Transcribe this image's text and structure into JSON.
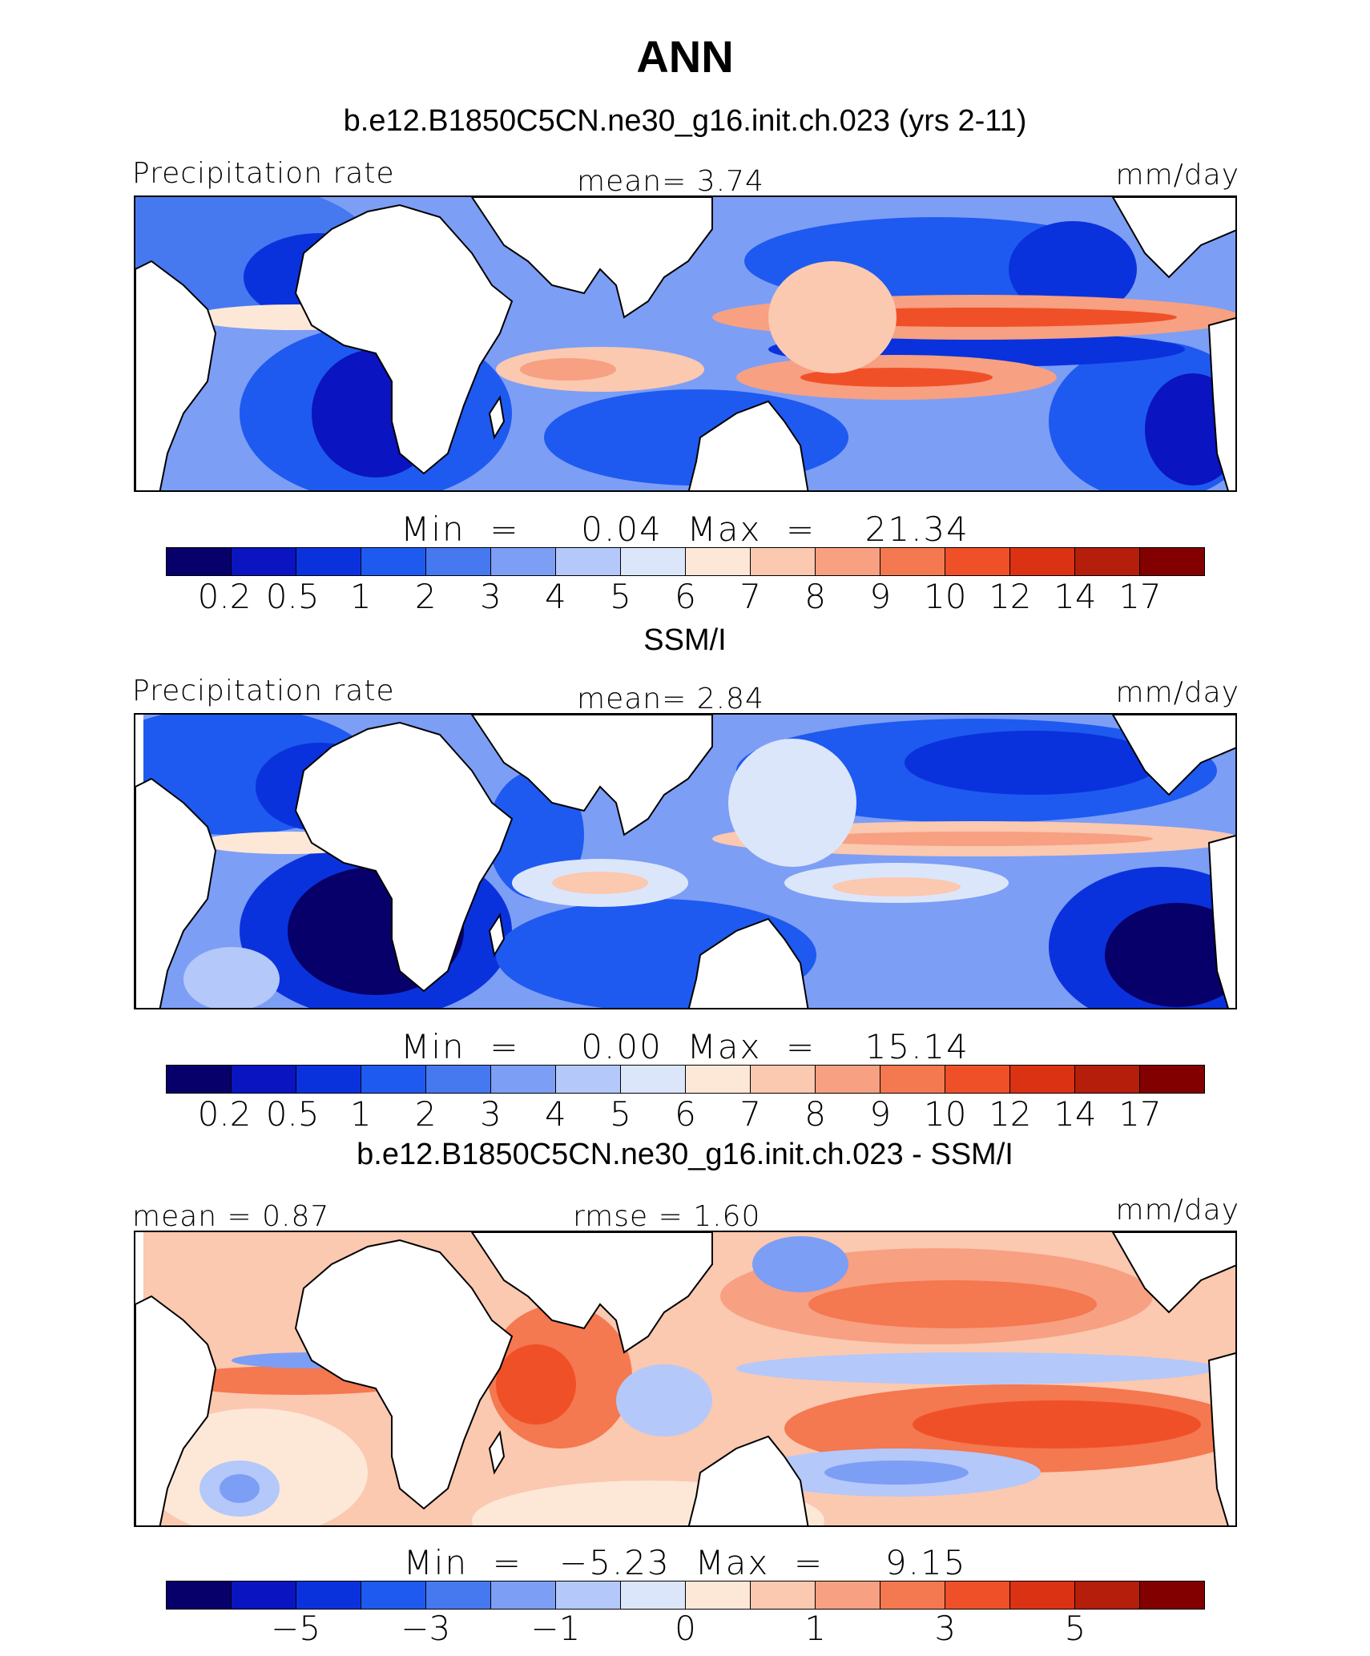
{
  "title": "ANN",
  "colors": {
    "scale": [
      "#08006a",
      "#0a14c0",
      "#0a32dc",
      "#1e5af0",
      "#4678f0",
      "#7d9ef5",
      "#b4c8fa",
      "#dce6fa",
      "#fde8d8",
      "#fbc8b0",
      "#f7a082",
      "#f47850",
      "#f05028",
      "#dc3214",
      "#b41e0a",
      "#820000"
    ],
    "land": "#ffffff",
    "coast": "#000000"
  },
  "panels": [
    {
      "title": "b.e12.B1850C5CN.ne30_g16.init.ch.023 (yrs 2-11)",
      "left_label": "Precipitation rate",
      "center_label": "mean=    3.74",
      "right_label": "mm/day",
      "stats": "Min  =     0.04  Max  =    21.34",
      "ticks": [
        "0.2",
        "0.5",
        "1",
        "2",
        "3",
        "4",
        "5",
        "6",
        "7",
        "8",
        "9",
        "10",
        "12",
        "14",
        "17"
      ]
    },
    {
      "title": "SSM/I",
      "left_label": "Precipitation rate",
      "center_label": "mean=    2.84",
      "right_label": "mm/day",
      "stats": "Min  =     0.00  Max  =    15.14",
      "ticks": [
        "0.2",
        "0.5",
        "1",
        "2",
        "3",
        "4",
        "5",
        "6",
        "7",
        "8",
        "9",
        "10",
        "12",
        "14",
        "17"
      ]
    },
    {
      "title": "b.e12.B1850C5CN.ne30_g16.init.ch.023 - SSM/I",
      "left_label": "mean =    0.87",
      "center_label": "rmse  =    1.60",
      "right_label": "mm/day",
      "stats": "Min  =   −5.23  Max  =     9.15",
      "ticks": [
        "−5",
        "−3",
        "−1",
        "0",
        "1",
        "3",
        "5"
      ]
    }
  ]
}
